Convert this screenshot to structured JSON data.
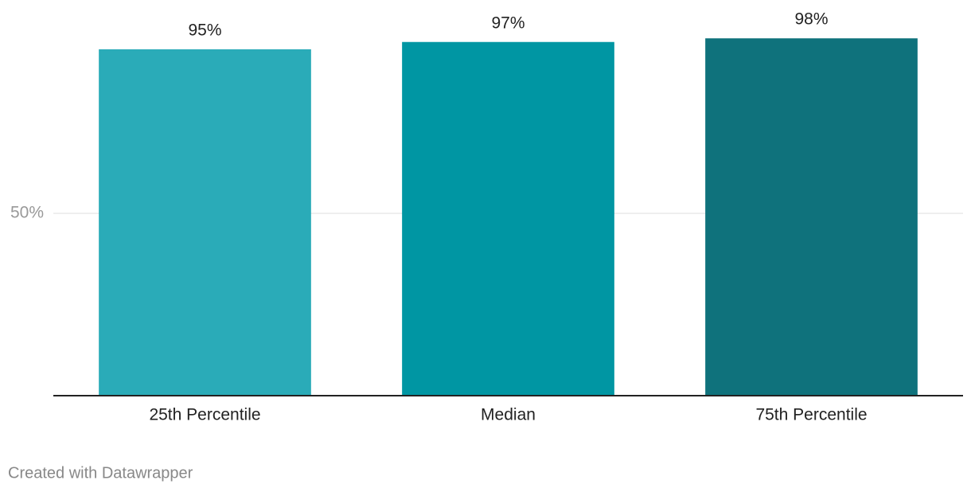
{
  "chart_data": {
    "type": "bar",
    "categories": [
      "25th Percentile",
      "Median",
      "75th Percentile"
    ],
    "values": [
      95,
      97,
      98
    ],
    "value_labels": [
      "95%",
      "97%",
      "98%"
    ],
    "colors": [
      "#2aabb8",
      "#0096a3",
      "#0f727c"
    ],
    "ylim": [
      0,
      100
    ],
    "yticks": [
      {
        "value": 50,
        "label": "50%"
      }
    ],
    "grid": true,
    "footer": "Created with Datawrapper"
  }
}
